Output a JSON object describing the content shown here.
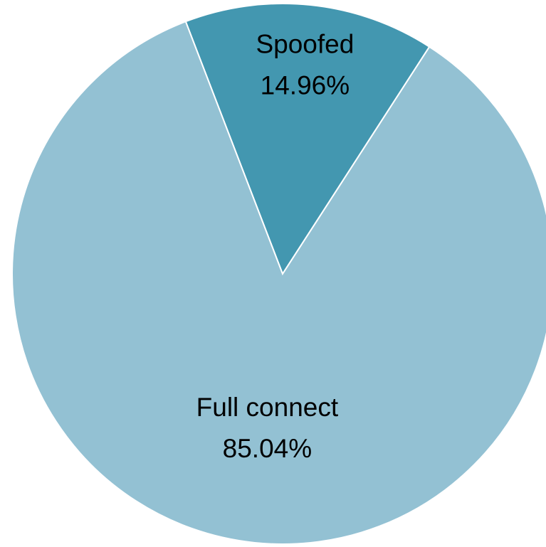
{
  "chart_data": {
    "type": "pie",
    "slices": [
      {
        "name": "Spoofed",
        "value": 14.96,
        "label_pct": "14.96%",
        "color": "#4397b0"
      },
      {
        "name": "Full connect",
        "value": 85.04,
        "label_pct": "85.04%",
        "color": "#93c1d3"
      }
    ],
    "start": "from 12 o'clock, going clockwise, offset by a small counter-clockwise rotation",
    "slice_edge_color": "#ffffff"
  }
}
